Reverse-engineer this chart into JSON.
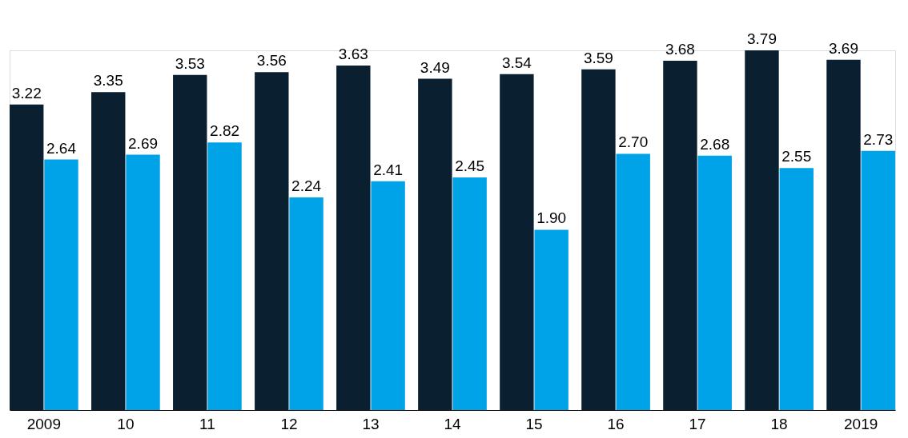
{
  "chart_data": {
    "type": "bar",
    "categories": [
      "2009",
      "10",
      "11",
      "12",
      "13",
      "14",
      "15",
      "16",
      "17",
      "18",
      "2019"
    ],
    "series": [
      {
        "color": "#0a1f30",
        "values": [
          3.22,
          3.35,
          3.53,
          3.56,
          3.63,
          3.49,
          3.54,
          3.59,
          3.68,
          3.79,
          3.69
        ],
        "value_labels": [
          "3.22",
          "3.35",
          "3.53",
          "3.56",
          "3.63",
          "3.49",
          "3.54",
          "3.59",
          "3.68",
          "3.79",
          "3.69"
        ]
      },
      {
        "color": "#00a3e8",
        "values": [
          2.64,
          2.69,
          2.82,
          2.24,
          2.41,
          2.45,
          1.9,
          2.7,
          2.68,
          2.55,
          2.73
        ],
        "value_labels": [
          "2.64",
          "2.69",
          "2.82",
          "2.24",
          "2.41",
          "2.45",
          "1.90",
          "2.70",
          "2.68",
          "2.55",
          "2.73"
        ]
      }
    ],
    "grid": false,
    "legend": false
  }
}
